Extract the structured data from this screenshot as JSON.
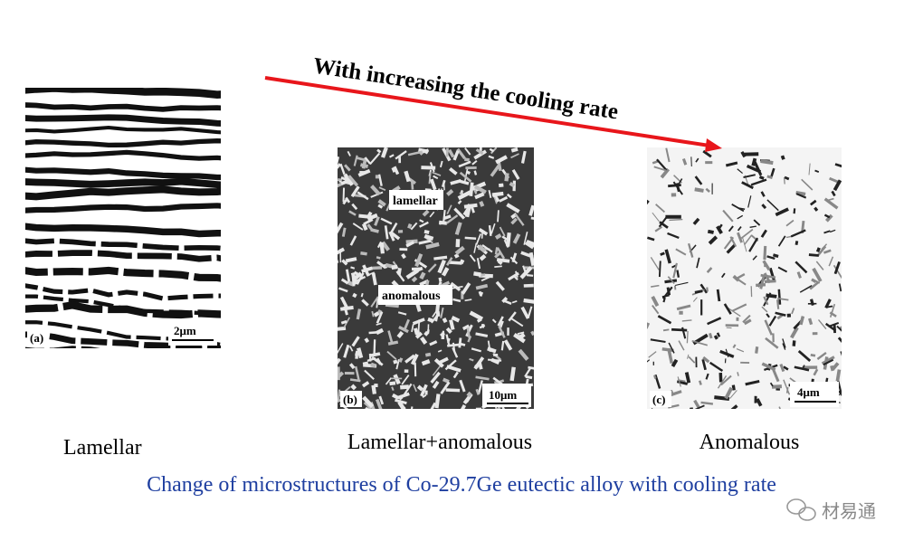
{
  "arrow_label": "With increasing the cooling rate",
  "panels": [
    {
      "tag": "(a)",
      "scale": "2μm",
      "label": "Lamellar",
      "inset_labels": []
    },
    {
      "tag": "(b)",
      "scale": "10μm",
      "label": "Lamellar+anomalous",
      "inset_labels": [
        "lamellar",
        "anomalous"
      ]
    },
    {
      "tag": "(c)",
      "scale": "4μm",
      "label": "Anomalous",
      "inset_labels": []
    }
  ],
  "caption": "Change of microstructures of Co-29.7Ge eutectic alloy with cooling rate",
  "watermark": "材易通"
}
